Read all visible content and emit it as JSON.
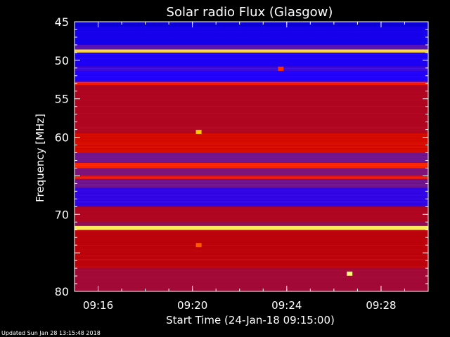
{
  "chart_data": {
    "type": "heatmap",
    "title": "Solar radio Flux (Glasgow)",
    "xlabel": "Start Time (24-Jan-18 09:15:00)",
    "ylabel": "Frequency [MHz]",
    "x_range": [
      "09:15",
      "09:30"
    ],
    "y_range": [
      45,
      80
    ],
    "y_inverted": true,
    "x_ticks": [
      "09:16",
      "09:20",
      "09:24",
      "09:28"
    ],
    "y_ticks": [
      45,
      50,
      55,
      60,
      65,
      70,
      75,
      80
    ],
    "y_tick_labels": [
      "45",
      "50",
      "55",
      "60",
      "",
      "70",
      "",
      "80"
    ],
    "colormap": [
      "#0000c0",
      "#2000ff",
      "#6a1aa0",
      "#c00000",
      "#ff2000",
      "#ff6000",
      "#ffd000",
      "#ffff90"
    ],
    "bands": [
      {
        "from": 45.0,
        "to": 45.6,
        "level": 0.05
      },
      {
        "from": 45.6,
        "to": 48.0,
        "level": 0.1
      },
      {
        "from": 48.0,
        "to": 48.6,
        "level": 0.25
      },
      {
        "from": 48.6,
        "to": 49.0,
        "level": 0.92
      },
      {
        "from": 49.0,
        "to": 50.8,
        "level": 0.12
      },
      {
        "from": 50.8,
        "to": 51.4,
        "level": 0.2
      },
      {
        "from": 51.4,
        "to": 52.8,
        "level": 0.15
      },
      {
        "from": 52.8,
        "to": 53.2,
        "level": 0.55
      },
      {
        "from": 53.2,
        "to": 59.5,
        "level": 0.4
      },
      {
        "from": 59.5,
        "to": 62.0,
        "level": 0.48
      },
      {
        "from": 62.0,
        "to": 63.3,
        "level": 0.3
      },
      {
        "from": 63.3,
        "to": 64.0,
        "level": 0.58
      },
      {
        "from": 64.0,
        "to": 65.0,
        "level": 0.32
      },
      {
        "from": 65.0,
        "to": 65.4,
        "level": 0.55
      },
      {
        "from": 65.4,
        "to": 66.5,
        "level": 0.3
      },
      {
        "from": 66.5,
        "to": 69.0,
        "level": 0.18
      },
      {
        "from": 69.0,
        "to": 71.0,
        "level": 0.4
      },
      {
        "from": 71.0,
        "to": 71.5,
        "level": 0.35
      },
      {
        "from": 71.5,
        "to": 72.0,
        "level": 0.95
      },
      {
        "from": 72.0,
        "to": 77.0,
        "level": 0.42
      },
      {
        "from": 77.0,
        "to": 80.0,
        "level": 0.38
      }
    ],
    "bursts": [
      {
        "time": "09:20:16",
        "freq": 59.3,
        "level": 0.85
      },
      {
        "time": "09:20:16",
        "freq": 74.0,
        "level": 0.7
      },
      {
        "time": "09:23:45",
        "freq": 51.1,
        "level": 0.6
      },
      {
        "time": "09:26:40",
        "freq": 77.7,
        "level": 0.98
      }
    ]
  },
  "footer": "Updated Sun Jan 28 13:15:48 2018"
}
